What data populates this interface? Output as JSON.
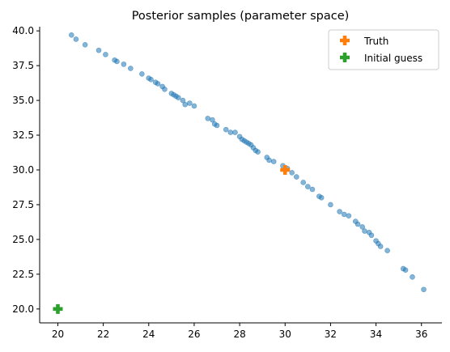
{
  "chart_data": {
    "type": "scatter",
    "title": "Posterior samples (parameter space)",
    "xlabel": "",
    "ylabel": "",
    "xlim": [
      19.2,
      36.9
    ],
    "ylim": [
      19.0,
      40.3
    ],
    "xticks": [
      20,
      22,
      24,
      26,
      28,
      30,
      32,
      34,
      36
    ],
    "yticks": [
      20.0,
      22.5,
      25.0,
      27.5,
      30.0,
      32.5,
      35.0,
      37.5,
      40.0
    ],
    "xtick_labels": [
      "20",
      "22",
      "24",
      "26",
      "28",
      "30",
      "32",
      "34",
      "36"
    ],
    "ytick_labels": [
      "20.0",
      "22.5",
      "25.0",
      "27.5",
      "30.0",
      "32.5",
      "35.0",
      "37.5",
      "40.0"
    ],
    "grid": false,
    "legend_position": "top-right",
    "colors": {
      "samples": "#1f77b4",
      "truth": "#ff7f0e",
      "initial": "#2ca02c"
    },
    "samples": [
      [
        20.6,
        39.7
      ],
      [
        20.8,
        39.4
      ],
      [
        21.2,
        39.0
      ],
      [
        21.8,
        38.6
      ],
      [
        22.1,
        38.3
      ],
      [
        22.5,
        37.9
      ],
      [
        22.6,
        37.8
      ],
      [
        22.9,
        37.6
      ],
      [
        23.2,
        37.3
      ],
      [
        23.7,
        36.9
      ],
      [
        24.0,
        36.6
      ],
      [
        24.1,
        36.5
      ],
      [
        24.3,
        36.3
      ],
      [
        24.4,
        36.2
      ],
      [
        24.6,
        36.0
      ],
      [
        24.7,
        35.8
      ],
      [
        25.0,
        35.5
      ],
      [
        25.1,
        35.4
      ],
      [
        25.2,
        35.3
      ],
      [
        25.3,
        35.2
      ],
      [
        25.5,
        35.0
      ],
      [
        25.6,
        34.7
      ],
      [
        25.8,
        34.8
      ],
      [
        26.0,
        34.6
      ],
      [
        26.6,
        33.7
      ],
      [
        26.8,
        33.6
      ],
      [
        26.9,
        33.3
      ],
      [
        27.0,
        33.2
      ],
      [
        27.4,
        32.9
      ],
      [
        27.6,
        32.7
      ],
      [
        27.8,
        32.7
      ],
      [
        28.0,
        32.4
      ],
      [
        28.1,
        32.2
      ],
      [
        28.2,
        32.1
      ],
      [
        28.3,
        32.0
      ],
      [
        28.4,
        31.9
      ],
      [
        28.5,
        31.8
      ],
      [
        28.6,
        31.6
      ],
      [
        28.7,
        31.4
      ],
      [
        28.8,
        31.3
      ],
      [
        29.2,
        30.9
      ],
      [
        29.3,
        30.7
      ],
      [
        29.5,
        30.6
      ],
      [
        29.9,
        30.3
      ],
      [
        30.1,
        30.1
      ],
      [
        30.3,
        29.8
      ],
      [
        30.5,
        29.5
      ],
      [
        30.8,
        29.1
      ],
      [
        31.0,
        28.8
      ],
      [
        31.2,
        28.6
      ],
      [
        31.5,
        28.1
      ],
      [
        31.6,
        28.0
      ],
      [
        32.0,
        27.5
      ],
      [
        32.4,
        27.0
      ],
      [
        32.6,
        26.8
      ],
      [
        32.8,
        26.7
      ],
      [
        33.1,
        26.3
      ],
      [
        33.2,
        26.1
      ],
      [
        33.4,
        25.9
      ],
      [
        33.5,
        25.6
      ],
      [
        33.7,
        25.5
      ],
      [
        33.8,
        25.3
      ],
      [
        34.0,
        24.9
      ],
      [
        34.1,
        24.7
      ],
      [
        34.2,
        24.5
      ],
      [
        34.5,
        24.2
      ],
      [
        35.2,
        22.9
      ],
      [
        35.3,
        22.8
      ],
      [
        35.6,
        22.3
      ],
      [
        36.1,
        21.4
      ]
    ],
    "truth": {
      "name": "Truth",
      "x": 30.0,
      "y": 30.0
    },
    "initial_guess": {
      "name": "Initial guess",
      "x": 20.0,
      "y": 20.0
    }
  }
}
